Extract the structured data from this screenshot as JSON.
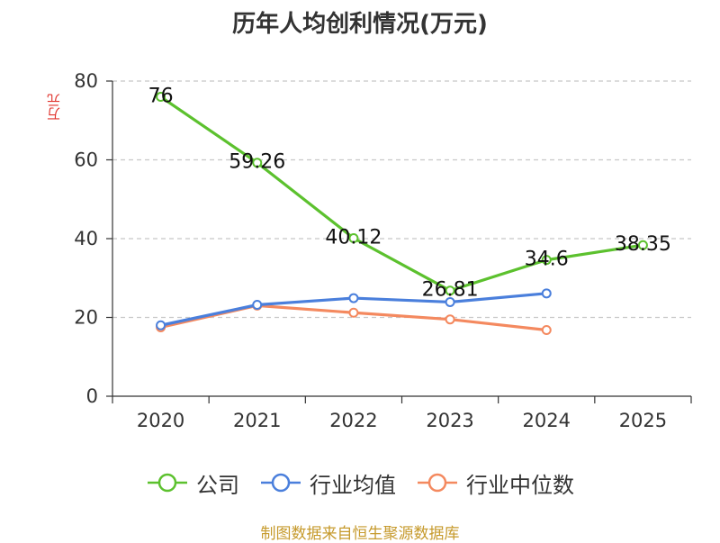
{
  "chart_data": {
    "type": "line",
    "title": "历年人均创利情况(万元)",
    "ylabel": "万元",
    "xlabel": "",
    "categories": [
      "2020",
      "2021",
      "2022",
      "2023",
      "2024",
      "2025"
    ],
    "ylim": [
      0,
      80
    ],
    "yticks": [
      0,
      20,
      40,
      60,
      80
    ],
    "grid": true,
    "legend_position": "bottom",
    "series": [
      {
        "name": "公司",
        "color": "#5cc12e",
        "values": [
          76,
          59.26,
          40.12,
          26.81,
          34.6,
          38.35
        ],
        "labels": [
          "76",
          "59.26",
          "40.12",
          "26.81",
          "34.6",
          "38.35"
        ]
      },
      {
        "name": "行业均值",
        "color": "#4a7fdc",
        "values": [
          18,
          23.2,
          24.9,
          23.9,
          26.1,
          null
        ]
      },
      {
        "name": "行业中位数",
        "color": "#f4895f",
        "values": [
          17.5,
          23.0,
          21.2,
          19.5,
          16.8,
          null
        ]
      }
    ]
  },
  "source": "制图数据来自恒生聚源数据库"
}
